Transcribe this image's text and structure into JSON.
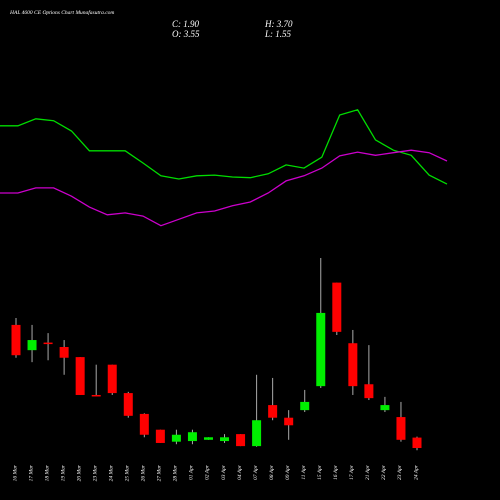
{
  "header": {
    "title": "HAL 4600 CE Options Chart Munafasutra.com",
    "close": "C: 1.90",
    "high": "H: 3.70",
    "open": "O: 3.55",
    "low": "L: 1.55"
  },
  "chart_data": {
    "type": "candlestick",
    "categories": [
      "16 Mar",
      "17 Mar",
      "18 Mar",
      "19 Mar",
      "20 Mar",
      "23 Mar",
      "24 Mar",
      "25 Mar",
      "26 Mar",
      "27 Mar",
      "28 Mar",
      "01 Apr",
      "02 Apr",
      "03 Apr",
      "04 Apr",
      "07 Apr",
      "08 Apr",
      "09 Apr",
      "11 Apr",
      "15 Apr",
      "16 Apr",
      "17 Apr",
      "21 Apr",
      "22 Apr",
      "23 Apr",
      "24 Apr"
    ],
    "open": [
      21.4,
      17.4,
      18.6,
      17.9,
      16.3,
      10.3,
      15.1,
      10.6,
      7.3,
      4.8,
      2.9,
      3.0,
      3.2,
      3.0,
      4.1,
      2.2,
      8.7,
      6.7,
      7.9,
      11.7,
      28.1,
      18.5,
      12.0,
      7.9,
      6.8,
      3.55
    ],
    "high": [
      22.5,
      21.4,
      20.1,
      19.0,
      16.3,
      15.1,
      15.1,
      10.8,
      7.4,
      4.8,
      4.8,
      4.8,
      3.6,
      4.1,
      4.1,
      13.5,
      13.0,
      7.9,
      11.1,
      32.0,
      28.1,
      20.6,
      18.2,
      10.0,
      9.2,
      3.7
    ],
    "low": [
      16.2,
      15.5,
      15.8,
      13.5,
      10.3,
      10.1,
      10.3,
      6.7,
      3.6,
      2.7,
      2.5,
      2.5,
      3.2,
      2.7,
      2.2,
      2.1,
      6.3,
      3.2,
      7.6,
      11.4,
      19.8,
      10.3,
      9.5,
      7.6,
      2.9,
      1.55
    ],
    "close": [
      16.6,
      19.0,
      18.4,
      16.2,
      10.3,
      10.2,
      10.6,
      7.0,
      4.0,
      2.7,
      4.0,
      4.4,
      3.6,
      3.6,
      2.2,
      6.3,
      6.7,
      5.5,
      9.2,
      23.3,
      20.3,
      11.7,
      9.8,
      8.7,
      3.2,
      1.9
    ],
    "up_color": "#00ee00",
    "down_color": "#ff0000",
    "ylim": [
      0,
      32
    ],
    "lines": {
      "ylim": [
        0,
        25
      ],
      "series": [
        {
          "color": "#00dd00",
          "values": [
            19.4,
            19.4,
            20.5,
            20.2,
            18.6,
            15.5,
            15.5,
            15.5,
            13.6,
            11.6,
            11.1,
            11.6,
            11.7,
            11.4,
            11.3,
            11.9,
            13.3,
            12.8,
            14.5,
            21.1,
            21.9,
            17.2,
            15.6,
            14.8,
            11.7,
            10.3
          ]
        },
        {
          "color": "#cc00cc",
          "values": [
            8.9,
            8.9,
            9.7,
            9.7,
            8.4,
            6.7,
            5.5,
            5.8,
            5.3,
            3.8,
            4.8,
            5.8,
            6.1,
            6.9,
            7.5,
            8.9,
            10.8,
            11.6,
            12.8,
            14.7,
            15.3,
            14.8,
            15.2,
            15.6,
            15.2,
            13.9
          ]
        }
      ]
    }
  }
}
